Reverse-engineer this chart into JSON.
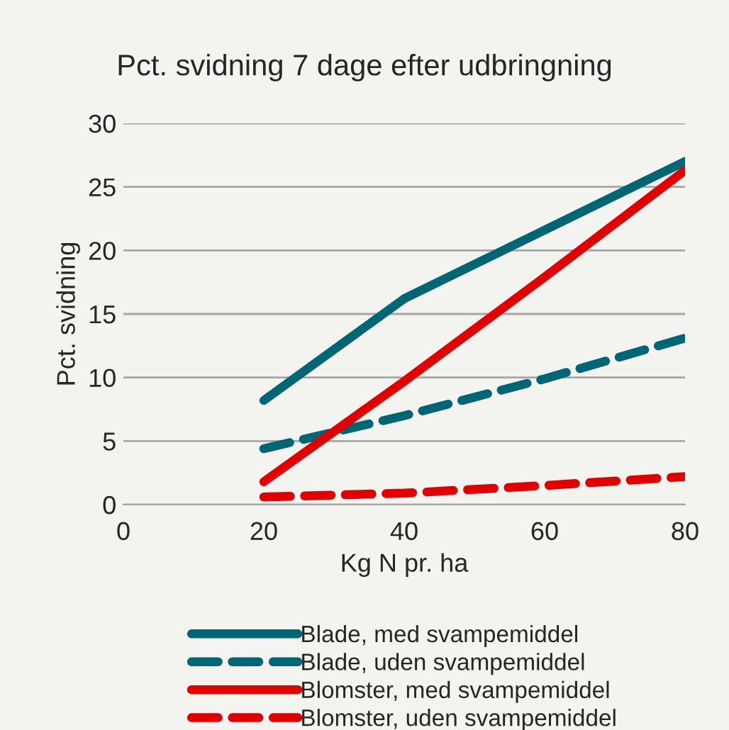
{
  "chart_data": {
    "type": "line",
    "title": "Pct. svidning 7 dage efter udbringning",
    "xlabel": "Kg N pr. ha",
    "ylabel": "Pct. svidning",
    "x": [
      20,
      40,
      60,
      80
    ],
    "series": [
      {
        "name": "Blade, med svampemiddel",
        "color": "#006673",
        "line_style": "solid",
        "values": [
          8.2,
          16.2,
          21.6,
          27.0
        ]
      },
      {
        "name": "Blade, uden svampemiddel",
        "color": "#006673",
        "line_style": "dashed",
        "values": [
          4.4,
          7.0,
          9.9,
          13.1
        ]
      },
      {
        "name": "Blomster, med svampemiddel",
        "color": "#e00000",
        "line_style": "solid",
        "values": [
          1.8,
          9.7,
          17.9,
          26.3
        ]
      },
      {
        "name": "Blomster, uden svampemiddel",
        "color": "#e00000",
        "line_style": "dashed",
        "values": [
          0.6,
          0.9,
          1.5,
          2.2
        ]
      }
    ],
    "xlim": [
      0,
      80
    ],
    "xticks": [
      0,
      20,
      40,
      60,
      80
    ],
    "ylim": [
      0,
      30
    ],
    "yticks": [
      0,
      5,
      10,
      15,
      20,
      25,
      30
    ],
    "grid": "y",
    "legend": "bottom",
    "marker": "none"
  }
}
